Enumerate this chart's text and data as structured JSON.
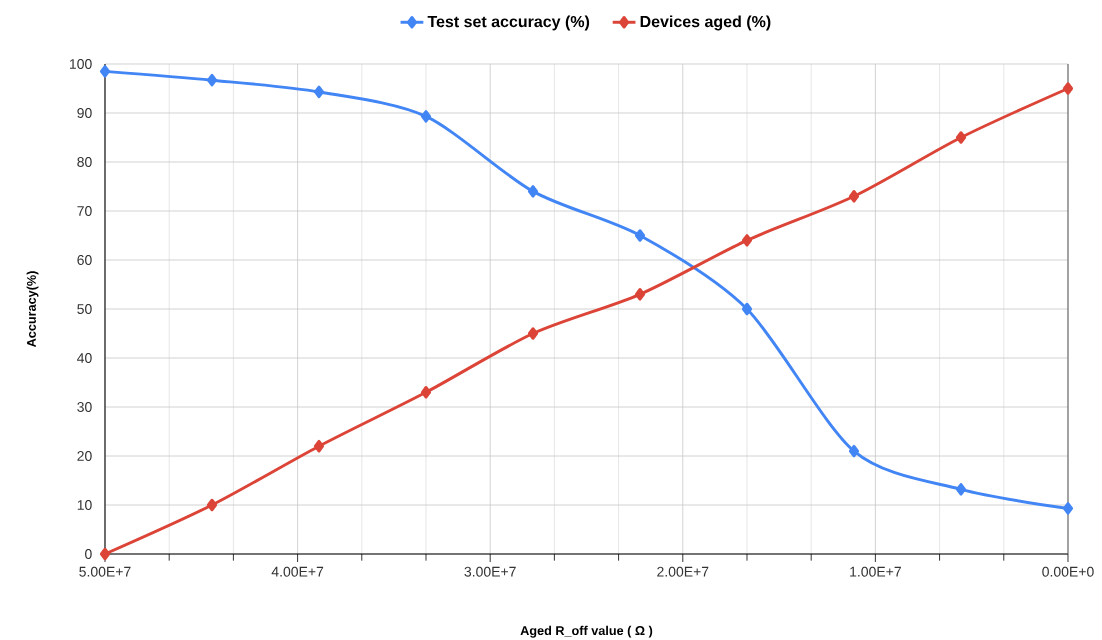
{
  "chart_data": {
    "type": "line",
    "x": [
      50000000,
      44444444,
      38888889,
      33333333,
      27777778,
      22222222,
      16666667,
      11111111,
      5555556,
      0
    ],
    "series": [
      {
        "name": "Test set accuracy (%)",
        "color": "#4285f4",
        "values": [
          98.5,
          96.7,
          94.3,
          89.3,
          74,
          65,
          50,
          21,
          13.2,
          9.3
        ]
      },
      {
        "name": "Devices aged  (%)",
        "color": "#db4437",
        "values": [
          0,
          10,
          22,
          33,
          45,
          53,
          64,
          73,
          85,
          95
        ]
      }
    ],
    "xlabel": "Aged R_off value ( Ω )",
    "ylabel": "Accuracy(%)",
    "xlim": [
      50000000,
      0
    ],
    "ylim": [
      0,
      100
    ],
    "xticks": [
      {
        "value": 50000000,
        "label": "5.00E+7"
      },
      {
        "value": 40000000,
        "label": "4.00E+7"
      },
      {
        "value": 30000000,
        "label": "3.00E+7"
      },
      {
        "value": 20000000,
        "label": "2.00E+7"
      },
      {
        "value": 10000000,
        "label": "1.00E+7"
      },
      {
        "value": 0,
        "label": "0.00E+0"
      }
    ],
    "yticks": [
      0,
      10,
      20,
      30,
      40,
      50,
      60,
      70,
      80,
      90,
      100
    ],
    "grid": true,
    "legend": "top",
    "marker": "diamond",
    "line_style": "solid"
  }
}
